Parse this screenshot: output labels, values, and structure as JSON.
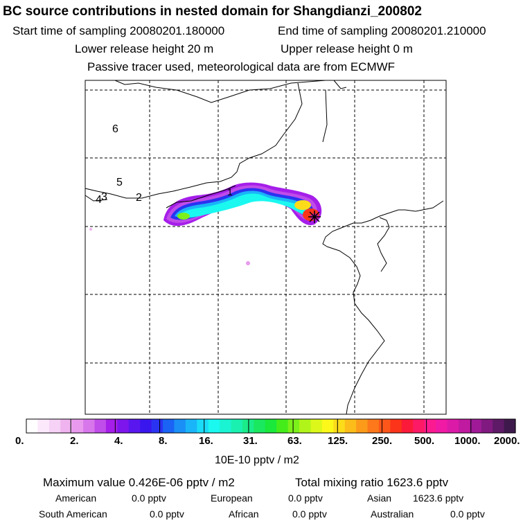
{
  "header": {
    "title": "BC  source contributions in nested domain for Shangdianzi_200802",
    "start": "Start time of sampling 20080201.180000",
    "end": "End time of sampling 20080201.210000",
    "lower": "Lower release height   20 m",
    "upper": "Upper release height    0 m",
    "note": "Passive tracer used, meteorological data are from ECMWF"
  },
  "map": {
    "labels": [
      "6",
      "5",
      "4",
      "3",
      "2",
      "1"
    ]
  },
  "legend": {
    "ticks": [
      "0.",
      "2.",
      "4.",
      "8.",
      "16.",
      "31.",
      "63.",
      "125.",
      "250.",
      "500.",
      "1000.",
      "2000."
    ],
    "unit": "10E-10 pptv / m2",
    "colors": [
      "#ffffff",
      "#fbe9fb",
      "#f6d2f6",
      "#efb3ef",
      "#e99aee",
      "#d877ec",
      "#c04ce9",
      "#a51ee9",
      "#7d16ec",
      "#5a16ee",
      "#3a16ee",
      "#2a33f2",
      "#1a63f4",
      "#1a8ff6",
      "#1ab4f8",
      "#1adcf8",
      "#1af8f0",
      "#1af4d2",
      "#1af0b0",
      "#1aec8a",
      "#1ae85e",
      "#1ae83a",
      "#44ec1a",
      "#7cf01a",
      "#b0f41a",
      "#dcf81a",
      "#fcf81a",
      "#fcdc1a",
      "#fcbc1a",
      "#fc9a1a",
      "#fc781a",
      "#fc561a",
      "#fc341a",
      "#fc1a3a",
      "#fc1a66",
      "#fc1a90",
      "#f01aa4",
      "#dc1aa8",
      "#c01aa0",
      "#a01a98",
      "#801a80",
      "#5e1a66",
      "#3e1a4c"
    ]
  },
  "summary": {
    "max_label": "Maximum value  0.426E-06 pptv / m2",
    "total_label": "Total mixing ratio      1623.6 pptv",
    "rows": [
      [
        {
          "label": "American",
          "value": "0.0 pptv"
        },
        {
          "label": "European",
          "value": "0.0 pptv"
        },
        {
          "label": "Asian",
          "value": "1623.6 pptv"
        }
      ],
      [
        {
          "label": "South American",
          "value": "0.0 pptv"
        },
        {
          "label": "African",
          "value": "0.0 pptv"
        },
        {
          "label": "Australian",
          "value": "0.0 pptv"
        }
      ]
    ]
  }
}
